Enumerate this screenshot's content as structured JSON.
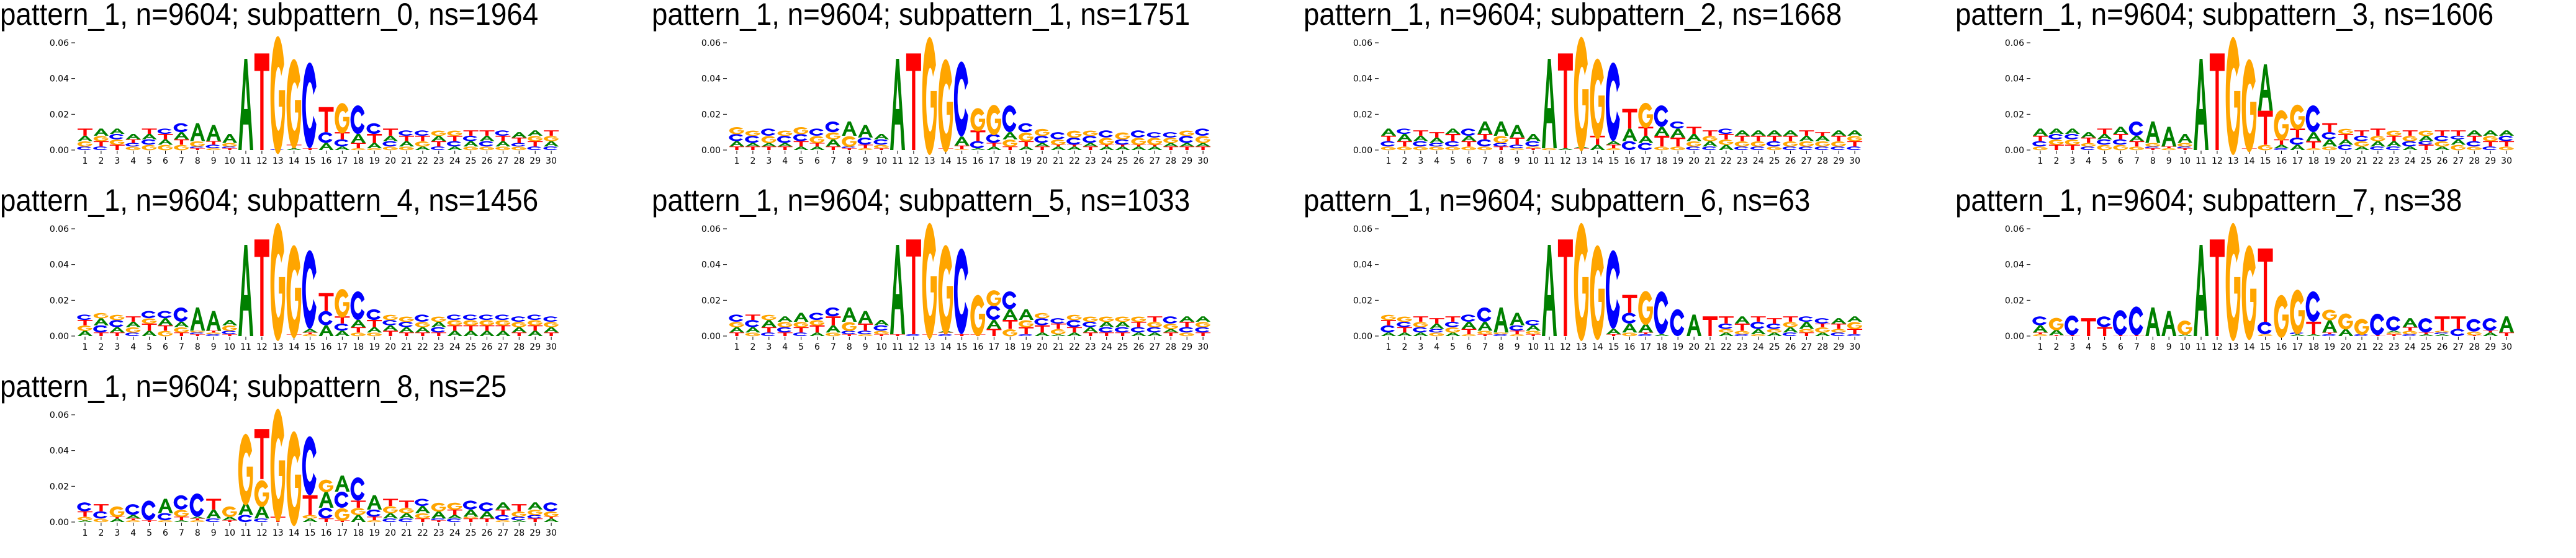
{
  "letter_colors": {
    "A": "#008000",
    "C": "#0000ff",
    "G": "#ffa500",
    "T": "#ff0000"
  },
  "stack_units": 0.001,
  "chart_data": [
    {
      "type": "sequence_logo",
      "title": "pattern_1, n=9604; subpattern_0, ns=1964",
      "ylim": [
        0,
        0.066
      ],
      "yticks": [
        0,
        0.02,
        0.04,
        0.06
      ],
      "ytick_labels": [
        "0.00",
        "0.02",
        "0.04",
        "0.06"
      ],
      "xtick_labels": [
        "1",
        "2",
        "3",
        "4",
        "5",
        "6",
        "7",
        "8",
        "9",
        "10",
        "11",
        "12",
        "13",
        "14",
        "15",
        "16",
        "17",
        "18",
        "19",
        "20",
        "21",
        "22",
        "23",
        "24",
        "25",
        "26",
        "27",
        "28",
        "29",
        "30"
      ],
      "stacks": [
        "C2 G3 A3 T4",
        "C2 T3 G3 A4",
        "T3 G3 C3 A3",
        "G2 C2 T2 A3",
        "G3 C3 A3 T3",
        "G3 A3 T3 C3",
        "G3 T3 A4 C5",
        "T1 C1 G3 A10",
        "G1 C2 T2 A9",
        "T1 C1 G2 A5",
        "A51",
        "T54",
        "C0.5 G66",
        "A1 T2 G50",
        "T1 C48",
        "A4 C6 T14",
        "A2 C4 T4 G17",
        "G1 T3 A5 C16",
        "G1 A3 T5 C6",
        "G2 C3 A3 T4",
        "G2 A3 T3 C3",
        "A2 G3 T3 C3",
        "C2 T3 A3 G3",
        "A2 C3 T3 G3",
        "G2 A3 C3 T3",
        "G2 C3 A3 T3",
        "G2 A3 T3 C3",
        "G2 C2 T3 A3",
        "C2 T3 G3 A3",
        "C2 A3 G3 T3"
      ]
    },
    {
      "type": "sequence_logo",
      "title": "pattern_1, n=9604; subpattern_1, ns=1751",
      "ylim": [
        0,
        0.066
      ],
      "yticks": [
        0,
        0.02,
        0.04,
        0.06
      ],
      "ytick_labels": [
        "0.00",
        "0.02",
        "0.04",
        "0.06"
      ],
      "xtick_labels": [
        "1",
        "2",
        "3",
        "4",
        "5",
        "6",
        "7",
        "8",
        "9",
        "10",
        "11",
        "12",
        "13",
        "14",
        "15",
        "16",
        "17",
        "18",
        "19",
        "20",
        "21",
        "22",
        "23",
        "24",
        "25",
        "26",
        "27",
        "28",
        "29",
        "30"
      ],
      "stacks": [
        "T2 A3 C4 G4",
        "T2 A2 C4 G3",
        "T2 A2 G4 C4",
        "T2 A2 C4 G3",
        "A2 T3 C4 G4",
        "A2 T2 G4 C4",
        "T2 A4 G4 C6",
        "T1 C1 G6 A8",
        "G1 T2 C4 A7",
        "T1 G2 C3 A3",
        "A51",
        "T54",
        "G66",
        "T1 G52",
        "G0.5 T2 A5 C42",
        "A1 C4 T6 G13",
        "A2 T2 C5 G17",
        "T2 G4 A4 C15",
        "A2 T3 G5 C5",
        "T2 A2 C4 G4",
        "A2 T1 G3 C4",
        "A2 T1 C4 G4",
        "T2 A2 C4 G3",
        "A2 T1 G4 C4",
        "A2 T1 C3 G4",
        "A2 T1 G4 C4",
        "A2 T1 G4 C3",
        "T2 A2 G3 C3",
        "T2 A2 C4 G3",
        "T2 A2 G4 C4"
      ]
    },
    {
      "type": "sequence_logo",
      "title": "pattern_1, n=9604; subpattern_2, ns=1668",
      "ylim": [
        0,
        0.066
      ],
      "yticks": [
        0,
        0.02,
        0.04,
        0.06
      ],
      "ytick_labels": [
        "0.00",
        "0.02",
        "0.04",
        "0.06"
      ],
      "xtick_labels": [
        "1",
        "2",
        "3",
        "4",
        "5",
        "6",
        "7",
        "8",
        "9",
        "10",
        "11",
        "12",
        "13",
        "14",
        "15",
        "16",
        "17",
        "18",
        "19",
        "20",
        "21",
        "22",
        "23",
        "24",
        "25",
        "26",
        "27",
        "28",
        "29",
        "30"
      ],
      "stacks": [
        "G2 C3 T3 A4",
        "G2 T3 A4 C3",
        "G2 C3 A3 T3",
        "G2 C2 A3 T3",
        "G2 C3 T4 A3",
        "G2 T3 A3 C4",
        "G2 C4 T3 A7",
        "T2 C2 G4 A8",
        "G1 C2 T4 A7",
        "T1 G1 C3 A4",
        "G1 A50",
        "A1 T53",
        "T1 A1 G64",
        "A3 T5 G45",
        "G1 T2 A2 C44",
        "C5 A7 T11",
        "C4 A4 T5 G14",
        "G2 T6 A5 C12",
        "G2 T5 A5 C4",
        "C2 G3 A4 T4",
        "C2 A3 G3 T3",
        "A3 G3 T3 C3",
        "C2 G3 T3 A3",
        "C2 G3 T3 A3",
        "G2 C3 T3 A3",
        "C2 G3 T3 A3",
        "C2 G3 A3 T3",
        "C2 G3 A3 T2",
        "C2 G3 T3 A3",
        "C2 T3 G3 A3"
      ]
    },
    {
      "type": "sequence_logo",
      "title": "pattern_1, n=9604; subpattern_3, ns=1606",
      "ylim": [
        0,
        0.066
      ],
      "yticks": [
        0,
        0.02,
        0.04,
        0.06
      ],
      "ytick_labels": [
        "0.00",
        "0.02",
        "0.04",
        "0.06"
      ],
      "xtick_labels": [
        "1",
        "2",
        "3",
        "4",
        "5",
        "6",
        "7",
        "8",
        "9",
        "10",
        "11",
        "12",
        "13",
        "14",
        "15",
        "16",
        "17",
        "18",
        "19",
        "20",
        "21",
        "22",
        "23",
        "24",
        "25",
        "26",
        "27",
        "28",
        "29",
        "30"
      ],
      "stacks": [
        "G2 C3 T3 A4",
        "T3 G3 C3 A3",
        "T3 G3 C3 A3",
        "C2 G2 T3 A3",
        "G3 C3 A3 T3",
        "G3 C3 T3 A4",
        "G2 T3 A3 C8",
        "T1 C1 G2 A12",
        "G1 T1 A11",
        "T1 C1 G2 A5",
        "A51",
        "T54",
        "G66",
        "T1 G52",
        "G3 T19 A26",
        "C1 A2 T3 G17",
        "A3 C4 T5 G14",
        "G1 T4 A5 C15",
        "G2 A4 C4 T5",
        "C3 A3 T3 G3",
        "A2 G3 C3 T3",
        "C2 A3 G3 T4",
        "C2 A3 T3 G3",
        "A2 C3 G3 T3",
        "T3 C2 A3 G3",
        "A2 G3 C3 T3",
        "G3 A3 C2 T3",
        "G2 C3 T3 A3",
        "C2 T3 G3 A3",
        "G2 T3 C3 A3"
      ]
    },
    {
      "type": "sequence_logo",
      "title": "pattern_1, n=9604; subpattern_4, ns=1456",
      "ylim": [
        0,
        0.066
      ],
      "yticks": [
        0,
        0.02,
        0.04,
        0.06
      ],
      "ytick_labels": [
        "0.00",
        "0.02",
        "0.04",
        "0.06"
      ],
      "xtick_labels": [
        "1",
        "2",
        "3",
        "4",
        "5",
        "6",
        "7",
        "8",
        "9",
        "10",
        "11",
        "12",
        "13",
        "14",
        "15",
        "16",
        "17",
        "18",
        "19",
        "20",
        "21",
        "22",
        "23",
        "24",
        "25",
        "26",
        "27",
        "28",
        "29",
        "30"
      ],
      "stacks": [
        "A3 G3 T3 C3",
        "T2 C4 A4 G3",
        "T2 A3 C4 G3",
        "C2 G3 A3 T3",
        "A3 T4 G3 C4",
        "G3 T3 A4 C4",
        "T2 G3 A3 C8",
        "T1 C1 G1 A13",
        "C1 G1 T1 A11",
        "T1 C2 G3 A3",
        "A51",
        "T54",
        "G66",
        "T1 G52",
        "G1 T1 A2 C44",
        "A6 C8 T10",
        "A3 C4 T4 G16",
        "G2 T3 A4 C16",
        "G2 A3 T4 C6",
        "T3 A3 C3 G3",
        "T2 A3 C3 G3",
        "T2 A3 G3 C4",
        "T2 C3 A3 G3",
        "A3 T3 G3 C3",
        "A3 T3 G3 C3",
        "A3 T3 G3 C3",
        "A3 T3 G3 C3",
        "T2 A3 G3 C3",
        "A3 T3 G3 C3",
        "T2 A3 G3 C3"
      ]
    },
    {
      "type": "sequence_logo",
      "title": "pattern_1, n=9604; subpattern_5, ns=1033",
      "ylim": [
        0,
        0.066
      ],
      "yticks": [
        0,
        0.02,
        0.04,
        0.06
      ],
      "ytick_labels": [
        "0.00",
        "0.02",
        "0.04",
        "0.06"
      ],
      "xtick_labels": [
        "1",
        "2",
        "3",
        "4",
        "5",
        "6",
        "7",
        "8",
        "9",
        "10",
        "11",
        "12",
        "13",
        "14",
        "15",
        "16",
        "17",
        "18",
        "19",
        "20",
        "21",
        "22",
        "23",
        "24",
        "25",
        "26",
        "27",
        "28",
        "29",
        "30"
      ],
      "stacks": [
        "T2 A3 G3 C4",
        "G2 A3 C4 T3",
        "C2 T3 A4 G3",
        "T2 C3 G3 A3",
        "C2 T3 G3 A5",
        "A2 T4 G3 C4",
        "G2 A4 T5 C5",
        "T1 C2 G5 A8",
        "G1 C2 T4 A7",
        "T1 G2 C3 A3",
        "T1 A50",
        "C1 T53",
        "T1 G65",
        "C1 T1 A1 G50",
        "T1 C48",
        "T1 G23",
        "T4 A5 C8 G9",
        "G4 T5 A6 C10",
        "C1 T4 G4 A6",
        "A2 T4 C4 G3",
        "A1 G3 T3 C3",
        "A2 T3 C4 G3",
        "T2 A3 C3 G3",
        "T2 C3 A3 G3",
        "T2 C3 A3 G3",
        "A2 C3 T3 G3",
        "A2 C3 G3 T3",
        "T2 A2 G3 C4",
        "G2 C3 T3 A3",
        "T2 C3 G3 A3"
      ]
    },
    {
      "type": "sequence_logo",
      "title": "pattern_1, n=9604; subpattern_6, ns=63",
      "ylim": [
        0,
        0.066
      ],
      "yticks": [
        0,
        0.02,
        0.04,
        0.06
      ],
      "ytick_labels": [
        "0.00",
        "0.02",
        "0.04",
        "0.06"
      ],
      "xtick_labels": [
        "1",
        "2",
        "3",
        "4",
        "5",
        "6",
        "7",
        "8",
        "9",
        "10",
        "11",
        "12",
        "13",
        "14",
        "15",
        "16",
        "17",
        "18",
        "19",
        "20",
        "21",
        "22",
        "23",
        "24",
        "25",
        "26",
        "27",
        "28",
        "29",
        "30"
      ],
      "stacks": [
        "A2 C4 T3 G3",
        "A2 T3 C3 G3",
        "A2 C3 G3 T3",
        "G2 C2 A3 T3",
        "A2 G3 C3 T3",
        "G1 T3 A4 C4",
        "T1 G2 A5 C8",
        "C1 G1 A14",
        "G1 T2 C3 A7",
        "T1 G2 A3 C3",
        "A51",
        "T54",
        "G66",
        "G53",
        "T1 A3 C44",
        "G2 A5 C6 T10",
        "C1 T1 A5 G19",
        "A1 C24",
        "C15",
        "A12",
        "T11",
        "A2 G2 C3 T4",
        "C1 G2 T4 A4",
        "G1 A3 C4 T3",
        "A2 G2 C3 T3",
        "C2 A3 G3 T3",
        "T2 G2 A4 C3",
        "A2 G3 T2 C3",
        "C2 G2 T3 A3",
        "C1 T3 G4 A3"
      ]
    },
    {
      "type": "sequence_logo",
      "title": "pattern_1, n=9604; subpattern_7, ns=38",
      "ylim": [
        0,
        0.066
      ],
      "yticks": [
        0,
        0.02,
        0.04,
        0.06
      ],
      "ytick_labels": [
        "0.00",
        "0.02",
        "0.04",
        "0.06"
      ],
      "xtick_labels": [
        "1",
        "2",
        "3",
        "4",
        "5",
        "6",
        "7",
        "8",
        "9",
        "10",
        "11",
        "12",
        "13",
        "14",
        "15",
        "16",
        "17",
        "18",
        "19",
        "20",
        "21",
        "22",
        "23",
        "24",
        "25",
        "26",
        "27",
        "28",
        "29",
        "30"
      ],
      "stacks": [
        "G1 T1 A4 C5",
        "T0.5 A3 G7",
        "T0.5 C11",
        "T10",
        "T5 C6",
        "T0.5 C14",
        "T0.5 C16",
        "A16",
        "A14",
        "A1 G8",
        "A51",
        "T54",
        "G66",
        "G53",
        "G1 C7 T41",
        "G24",
        "A1 C1 G25",
        "A1 T7 C17",
        "C1 T1 A7 G6",
        "A4 G9",
        "C1 G9",
        "T0.5 C12",
        "T1 G1 A1 C8",
        "C1 G2 T2 A5",
        "A1 T1 C8",
        "A1 C1 G1 T8",
        "C4 T7",
        "T0.5 G2 C7",
        "A2 T1 C7",
        "T2 A9"
      ]
    },
    {
      "type": "sequence_logo",
      "title": "pattern_1, n=9604; subpattern_8, ns=25",
      "ylim": [
        0,
        0.066
      ],
      "yticks": [
        0,
        0.02,
        0.04,
        0.06
      ],
      "ytick_labels": [
        "0.00",
        "0.02",
        "0.04",
        "0.06"
      ],
      "xtick_labels": [
        "1",
        "2",
        "3",
        "4",
        "5",
        "6",
        "7",
        "8",
        "9",
        "10",
        "11",
        "12",
        "13",
        "14",
        "15",
        "16",
        "17",
        "18",
        "19",
        "20",
        "21",
        "22",
        "23",
        "24",
        "25",
        "26",
        "27",
        "28",
        "29",
        "30"
      ],
      "stacks": [
        "A1 G2 T3 C5",
        "G2 C4 T4",
        "A2 T1 G6",
        "G1 T1 A2 C6",
        "T1 C11",
        "G1 C4 A8",
        "A1 T2 G4 C8",
        "G1 T1 A1 C13",
        "C2 A5 T6",
        "T1 A2 G6",
        "C4 A7 G40",
        "C2 A7 G15 T28",
        "T3 G63",
        "G53",
        "A2 G2 T11 C33",
        "T2 C6 A9 G7",
        "T1 G7 C9 A9",
        "A4 G4 T4 C13",
        "G1 T2 C4 A8",
        "C2 A3 G4 T4",
        "C2 A3 G3 T4",
        "T2 G3 A4 C4",
        "T1 C1 A4 G5",
        "C2 A2 T3 G4",
        "T2 G1 A4 C5",
        "T2 A4 C5",
        "G1 C3 T3 A4",
        "A1 C2 G3 T4",
        "T2 C2 G3 A4",
        "A2 T1 G3 C5"
      ]
    }
  ]
}
